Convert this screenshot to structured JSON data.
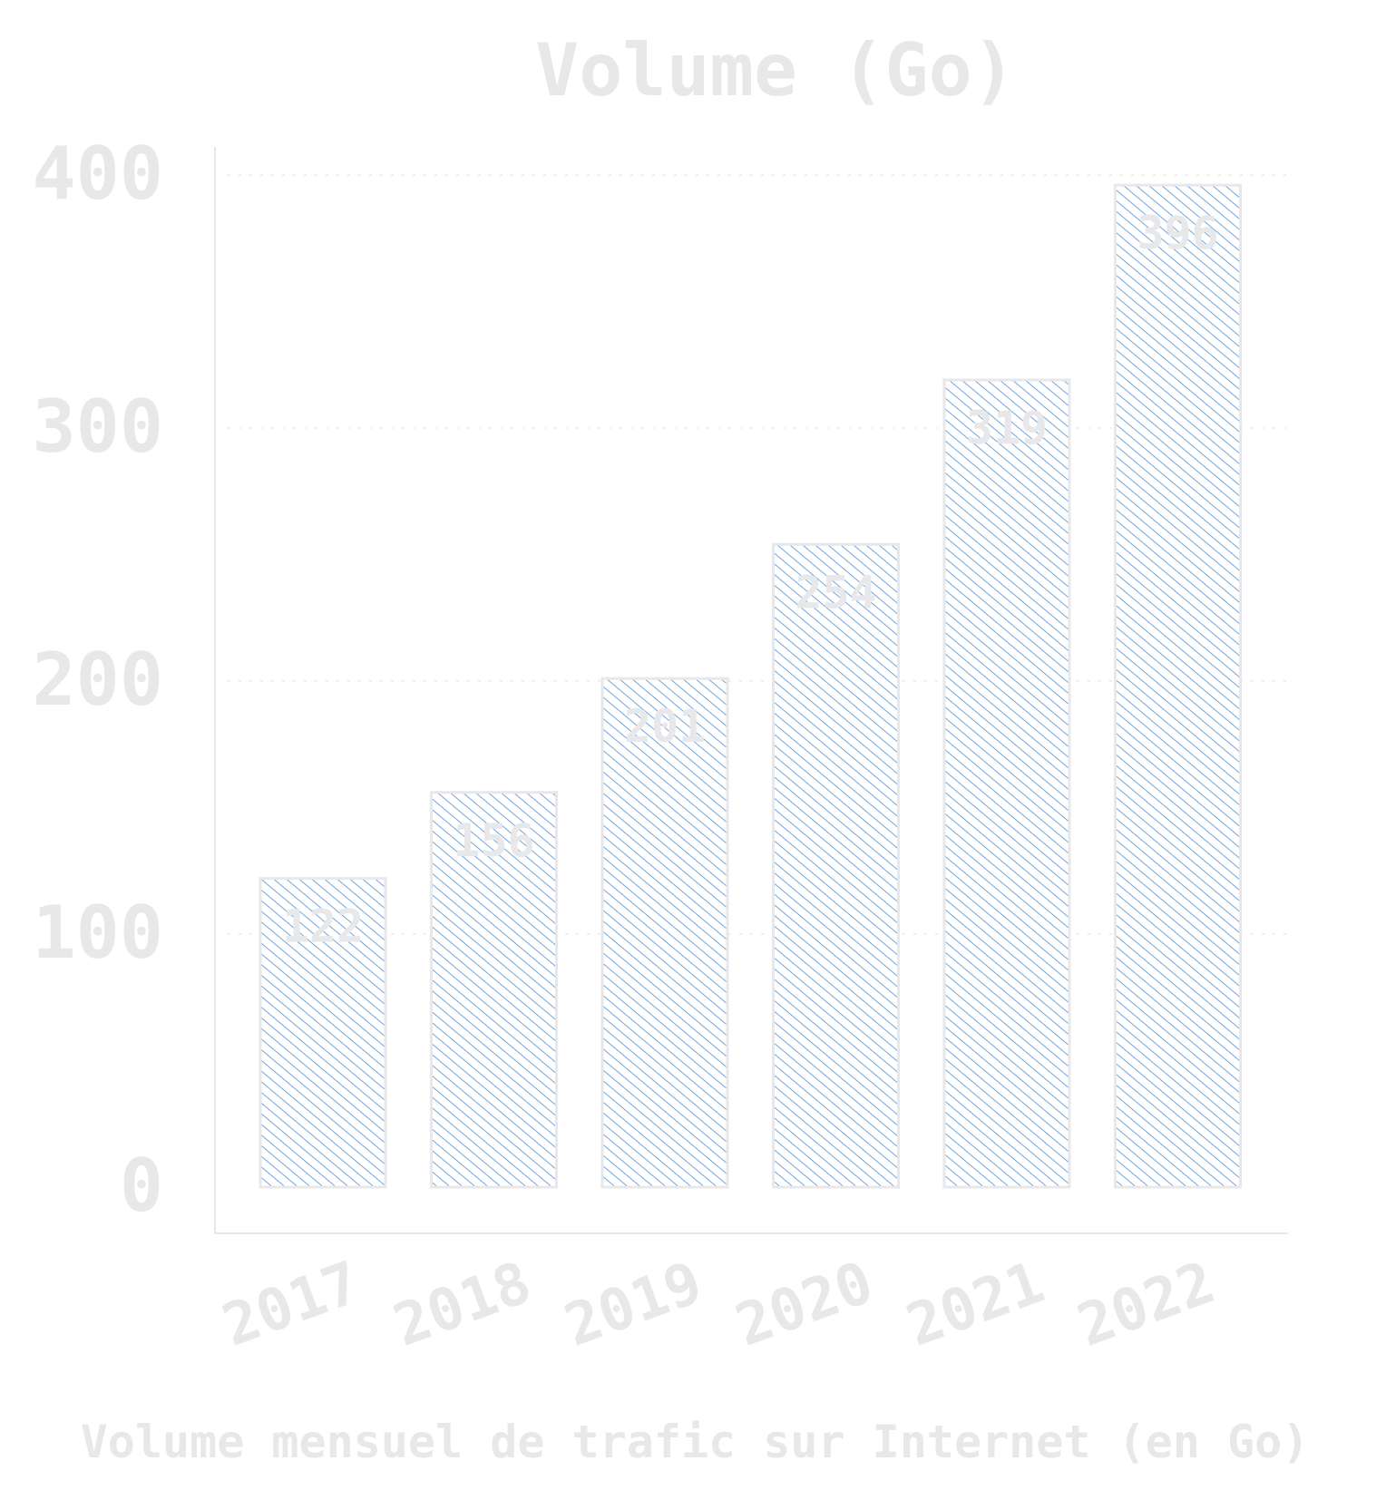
{
  "chart_data": {
    "type": "bar",
    "title": "Volume (Go)",
    "xlabel": "Volume mensuel de trafic sur Internet (en Go)",
    "ylabel": "",
    "categories": [
      "2017",
      "2018",
      "2019",
      "2020",
      "2021",
      "2022"
    ],
    "values": [
      122,
      156,
      201,
      254,
      319,
      396
    ],
    "value_labels": [
      "122",
      "156",
      "201",
      "254",
      "319",
      "396"
    ],
    "ylim": [
      0,
      400
    ],
    "yticks": [
      0,
      100,
      200,
      300,
      400
    ],
    "ytick_labels": [
      "0",
      "100",
      "200",
      "300",
      "400"
    ],
    "grid": true,
    "legend": "none",
    "colors": {
      "bar_hatch": "#4a90d9",
      "bar_outline": "#e8e7e9",
      "text": "#e8e7e9",
      "grid": "#eeeeee",
      "axis": "#e8e7e9"
    }
  }
}
